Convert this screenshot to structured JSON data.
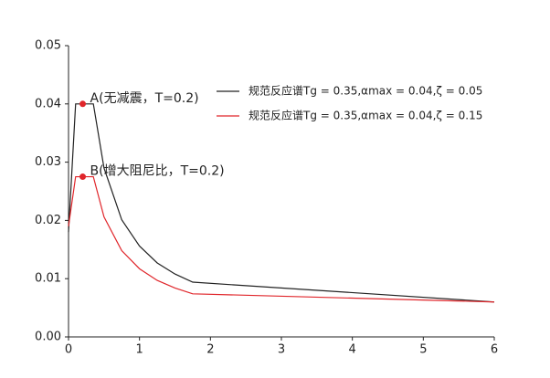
{
  "chart_data": {
    "type": "line",
    "x": [
      0,
      0.1,
      0.35,
      0.5,
      0.75,
      1.0,
      1.25,
      1.5,
      1.75,
      6.0
    ],
    "series": [
      {
        "name": "规范反应谱Tg = 0.35,αmax = 0.04,ζ = 0.05",
        "color": "#222222",
        "values": [
          0.018,
          0.04,
          0.04,
          0.029,
          0.0201,
          0.0156,
          0.0127,
          0.0108,
          0.0094,
          0.006
        ]
      },
      {
        "name": "规范反应谱Tg = 0.35,αmax = 0.04,ζ = 0.15",
        "color": "#e0262b",
        "values": [
          0.019,
          0.0275,
          0.0275,
          0.0206,
          0.0148,
          0.0117,
          0.0097,
          0.0084,
          0.0074,
          0.006
        ]
      }
    ],
    "annotations": [
      {
        "text": "A(无减震，T=0.2)",
        "x": 0.2,
        "y": 0.04,
        "color": "#e0262b"
      },
      {
        "text": "B(增大阻尼比，T=0.2)",
        "x": 0.2,
        "y": 0.0275,
        "color": "#e0262b"
      }
    ],
    "xlim": [
      0,
      6
    ],
    "xticks": [
      0,
      1,
      2,
      3,
      4,
      5,
      6
    ],
    "ylim": [
      0,
      0.05
    ],
    "yticks": [
      {
        "value": 0,
        "label": "0.00"
      },
      {
        "value": 0.01,
        "label": "0.01"
      },
      {
        "value": 0.02,
        "label": "0.02"
      },
      {
        "value": 0.03,
        "label": "0.03"
      },
      {
        "value": 0.04,
        "label": "0.04"
      },
      {
        "value": 0.05,
        "label": "0.05"
      }
    ],
    "grid": false,
    "legend": "upper right"
  }
}
